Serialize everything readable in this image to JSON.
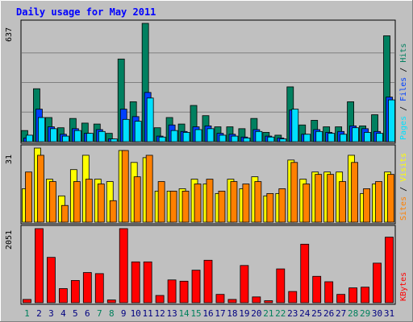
{
  "chart_data": {
    "type": "bar",
    "title": "Daily usage for May 2011",
    "categories": [
      "1",
      "2",
      "3",
      "4",
      "5",
      "6",
      "7",
      "8",
      "9",
      "10",
      "11",
      "12",
      "13",
      "14",
      "15",
      "16",
      "17",
      "18",
      "19",
      "20",
      "21",
      "22",
      "23",
      "24",
      "25",
      "26",
      "27",
      "28",
      "29",
      "30",
      "31"
    ],
    "weekend_days": [
      "1",
      "7",
      "8",
      "14",
      "15",
      "21",
      "22",
      "28",
      "29"
    ],
    "panels": [
      {
        "max_label": "637",
        "ylim": [
          0,
          637
        ],
        "legend": [
          {
            "text": "Pages",
            "color": "#00e0ff"
          },
          {
            "text": "Files",
            "color": "#0040ff"
          },
          {
            "text": "Hits",
            "color": "#008060"
          }
        ],
        "series": [
          {
            "name": "Hits",
            "color": "#008060",
            "values": [
              60,
              285,
              130,
              75,
              125,
              100,
              95,
              45,
              445,
              215,
              637,
              75,
              130,
              95,
              195,
              140,
              80,
              80,
              70,
              125,
              50,
              35,
              295,
              90,
              115,
              80,
              80,
              215,
              85,
              145,
              570
            ]
          },
          {
            "name": "Files",
            "color": "#0040ff",
            "values": [
              20,
              175,
              80,
              40,
              70,
              45,
              65,
              15,
              175,
              135,
              265,
              30,
              90,
              55,
              80,
              85,
              45,
              40,
              25,
              65,
              30,
              20,
              170,
              40,
              65,
              50,
              55,
              85,
              70,
              55,
              240
            ]
          },
          {
            "name": "Pages",
            "color": "#00e0ff",
            "values": [
              35,
              130,
              70,
              30,
              60,
              45,
              55,
              15,
              120,
              110,
              235,
              25,
              60,
              50,
              65,
              70,
              35,
              30,
              20,
              55,
              25,
              15,
              175,
              40,
              55,
              45,
              40,
              75,
              50,
              45,
              225
            ]
          }
        ]
      },
      {
        "max_label": "31",
        "ylim": [
          0,
          31
        ],
        "legend": [
          {
            "text": "Sites",
            "color": "#ff8000"
          },
          {
            "text": "Visits",
            "color": "#ffff00"
          }
        ],
        "series": [
          {
            "name": "Visits",
            "color": "#ffff00",
            "values": [
              14,
              31,
              18,
              11,
              22,
              28,
              18,
              17,
              30,
              25,
              27,
              13,
              13,
              14,
              18,
              16,
              12,
              18,
              14,
              19,
              11,
              12,
              26,
              18,
              21,
              21,
              21,
              28,
              12,
              16,
              21
            ]
          },
          {
            "name": "Sites",
            "color": "#ff8000",
            "values": [
              21,
              28,
              17,
              7,
              17,
              18,
              16,
              9,
              30,
              19,
              28,
              17,
              13,
              13,
              16,
              18,
              13,
              17,
              16,
              17,
              12,
              14,
              25,
              16,
              20,
              20,
              17,
              25,
              14,
              17,
              20
            ]
          }
        ]
      },
      {
        "max_label": "2051",
        "ylim": [
          0,
          2051
        ],
        "legend": [
          {
            "text": "KBytes",
            "color": "#ff0000"
          }
        ],
        "series": [
          {
            "name": "KBytes",
            "color": "#ff0000",
            "values": [
              90,
              2051,
              1255,
              390,
              615,
              835,
              805,
              75,
              2051,
              1130,
              1130,
              200,
              630,
              595,
              900,
              1175,
              230,
              90,
              1030,
              160,
              55,
              935,
              310,
              1620,
              730,
              580,
              230,
              410,
              430,
              1095,
              1815
            ]
          }
        ]
      }
    ]
  },
  "colors": {
    "background": "#c0c0c0",
    "plot_background": "#c0c0c0",
    "frame": "#000000",
    "gridline": "#808080",
    "title": "#0000ff",
    "weekday_label": "#000080",
    "weekend_label": "#00805c",
    "max_label": "#000000",
    "legend_separator": "#000000"
  }
}
